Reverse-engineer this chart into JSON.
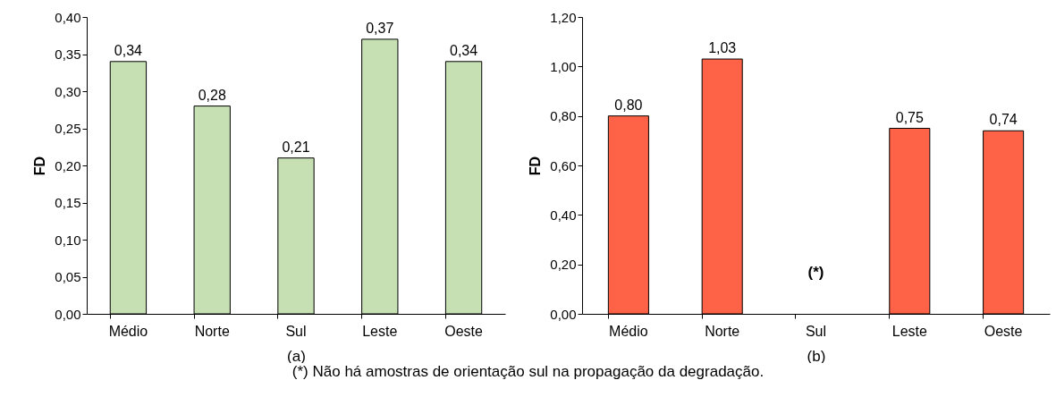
{
  "chart_data": [
    {
      "type": "bar",
      "xlabel": "(a)",
      "ylabel": "FD",
      "categories": [
        "Médio",
        "Norte",
        "Sul",
        "Leste",
        "Oeste"
      ],
      "series": [
        {
          "color": "#c6e0b4",
          "values": [
            0.34,
            0.28,
            0.21,
            0.37,
            0.34
          ]
        }
      ],
      "value_labels": [
        "0,34",
        "0,28",
        "0,21",
        "0,37",
        "0,34"
      ],
      "ylim": [
        0,
        0.4
      ],
      "yticks": [
        {
          "value": 0,
          "label": "0,00"
        },
        {
          "value": 0.05,
          "label": "0,05"
        },
        {
          "value": 0.1,
          "label": "0,10"
        },
        {
          "value": 0.15,
          "label": "0,15"
        },
        {
          "value": 0.2,
          "label": "0,20"
        },
        {
          "value": 0.25,
          "label": "0,25"
        },
        {
          "value": 0.3,
          "label": "0,30"
        },
        {
          "value": 0.35,
          "label": "0,35"
        },
        {
          "value": 0.4,
          "label": "0,40"
        }
      ],
      "grid": false
    },
    {
      "type": "bar",
      "xlabel": "(b)",
      "ylabel": "FD",
      "categories": [
        "Médio",
        "Norte",
        "Sul",
        "Leste",
        "Oeste"
      ],
      "series": [
        {
          "color": "#ff6347",
          "values": [
            0.8,
            1.03,
            null,
            0.75,
            0.74
          ]
        }
      ],
      "value_labels": [
        "0,80",
        "1,03",
        null,
        "0,75",
        "0,74"
      ],
      "ylim": [
        0,
        1.2
      ],
      "yticks": [
        {
          "value": 0,
          "label": "0,00"
        },
        {
          "value": 0.2,
          "label": "0,20"
        },
        {
          "value": 0.4,
          "label": "0,40"
        },
        {
          "value": 0.6,
          "label": "0,60"
        },
        {
          "value": 0.8,
          "label": "0,80"
        },
        {
          "value": 1.0,
          "label": "1,00"
        },
        {
          "value": 1.2,
          "label": "1,20"
        }
      ],
      "annotations": [
        "(*)",
        "(*) Não há amostras de orientação sul na propagação da degradação."
      ],
      "grid": false
    }
  ]
}
